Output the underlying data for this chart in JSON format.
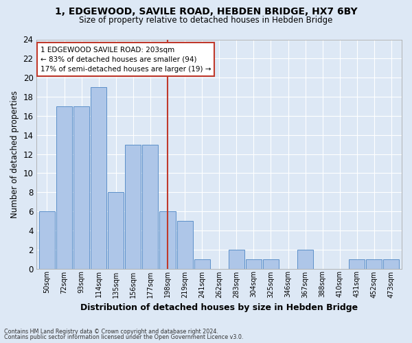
{
  "title": "1, EDGEWOOD, SAVILE ROAD, HEBDEN BRIDGE, HX7 6BY",
  "subtitle": "Size of property relative to detached houses in Hebden Bridge",
  "xlabel": "Distribution of detached houses by size in Hebden Bridge",
  "ylabel": "Number of detached properties",
  "categories": [
    "50sqm",
    "72sqm",
    "93sqm",
    "114sqm",
    "135sqm",
    "156sqm",
    "177sqm",
    "198sqm",
    "219sqm",
    "241sqm",
    "262sqm",
    "283sqm",
    "304sqm",
    "325sqm",
    "346sqm",
    "367sqm",
    "388sqm",
    "410sqm",
    "431sqm",
    "452sqm",
    "473sqm"
  ],
  "values": [
    6,
    17,
    17,
    19,
    8,
    13,
    13,
    6,
    5,
    1,
    0,
    2,
    1,
    1,
    0,
    2,
    0,
    0,
    1,
    1,
    1
  ],
  "bar_color": "#aec6e8",
  "bar_edge_color": "#5b8fc9",
  "vline_index": 7,
  "vline_color": "#c0392b",
  "ylim": [
    0,
    24
  ],
  "yticks": [
    0,
    2,
    4,
    6,
    8,
    10,
    12,
    14,
    16,
    18,
    20,
    22,
    24
  ],
  "annotation_line1": "1 EDGEWOOD SAVILE ROAD: 203sqm",
  "annotation_line2": "← 83% of detached houses are smaller (94)",
  "annotation_line3": "17% of semi-detached houses are larger (19) →",
  "annotation_box_color": "#c0392b",
  "bg_color": "#dde8f5",
  "grid_color": "#ffffff",
  "fig_bg_color": "#dde8f5",
  "footer1": "Contains HM Land Registry data © Crown copyright and database right 2024.",
  "footer2": "Contains public sector information licensed under the Open Government Licence v3.0."
}
